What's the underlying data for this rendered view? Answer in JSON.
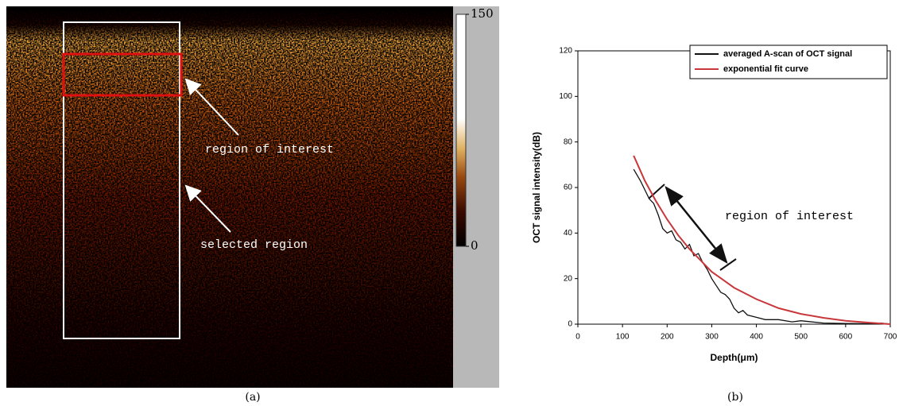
{
  "chart_data": [
    {
      "type": "image",
      "caption": "(a)",
      "annotations": [
        "region of interest",
        "selected region"
      ],
      "colorbar": {
        "lim": [
          0,
          150
        ],
        "ticks": [
          0,
          150
        ]
      }
    },
    {
      "type": "line",
      "caption": "(b)",
      "xlabel": "Depth(μm)",
      "ylabel": "OCT signal intensity(dB)",
      "annotation": "region of interest",
      "xlim": [
        0,
        700
      ],
      "xticks": [
        0,
        100,
        200,
        300,
        400,
        500,
        600,
        700
      ],
      "ylim": [
        0,
        120
      ],
      "yticks": [
        0,
        20,
        40,
        60,
        80,
        100,
        120
      ],
      "legend": "upper right",
      "series": [
        {
          "name": "averaged A-scan of OCT signal",
          "color": "#111111",
          "x": [
            125,
            140,
            160,
            170,
            180,
            190,
            200,
            210,
            220,
            230,
            240,
            250,
            260,
            270,
            280,
            290,
            300,
            310,
            320,
            330,
            340,
            350,
            360,
            370,
            380,
            400,
            420,
            450,
            480,
            500,
            550,
            600,
            650,
            680,
            700
          ],
          "values": [
            68,
            63,
            55,
            53,
            48,
            42,
            40,
            41,
            37,
            36,
            33,
            35,
            30,
            31,
            27,
            24,
            20,
            17,
            14,
            13,
            11,
            7,
            5,
            6,
            4,
            3,
            2,
            2,
            1,
            1.5,
            0.5,
            0.3,
            0.2,
            0.5,
            0
          ]
        },
        {
          "name": "exponential fit curve",
          "color": "#c8373a",
          "x": [
            125,
            150,
            175,
            200,
            225,
            250,
            275,
            300,
            325,
            350,
            400,
            450,
            500,
            550,
            600,
            650,
            700
          ],
          "values": [
            74,
            63,
            54,
            46,
            39,
            33,
            28,
            23,
            19.5,
            16,
            11,
            7,
            4.5,
            2.8,
            1.5,
            0.7,
            0
          ]
        }
      ]
    }
  ]
}
